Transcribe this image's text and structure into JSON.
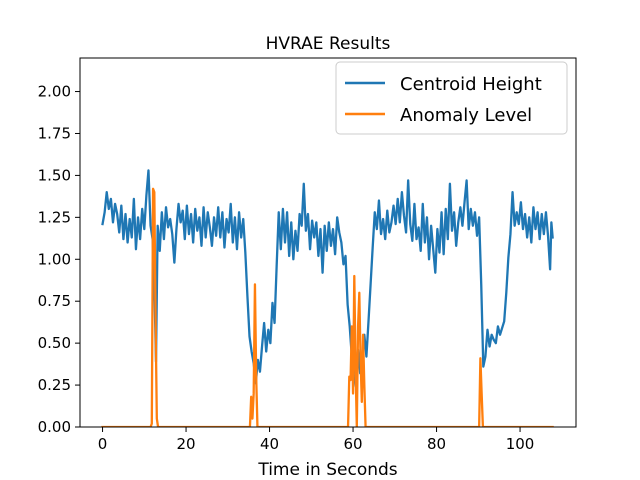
{
  "chart_data": {
    "type": "line",
    "title": "HVRAE Results",
    "xlabel": "Time in Seconds",
    "ylabel": "",
    "xlim": [
      -5.4,
      113.4
    ],
    "ylim": [
      0,
      2.2
    ],
    "xticks": [
      0,
      20,
      40,
      60,
      80,
      100
    ],
    "yticks": [
      0.0,
      0.25,
      0.5,
      0.75,
      1.0,
      1.25,
      1.5,
      1.75,
      2.0
    ],
    "xtick_labels": [
      "0",
      "20",
      "40",
      "60",
      "80",
      "100"
    ],
    "ytick_labels": [
      "0.00",
      "0.25",
      "0.50",
      "0.75",
      "1.00",
      "1.25",
      "1.50",
      "1.75",
      "2.00"
    ],
    "grid": false,
    "legend_position": "top-right",
    "series": [
      {
        "name": "Centroid Height",
        "color": "#1f77b4",
        "points": [
          [
            0,
            1.21
          ],
          [
            0.5,
            1.28
          ],
          [
            1,
            1.4
          ],
          [
            1.5,
            1.3
          ],
          [
            2,
            1.36
          ],
          [
            2.5,
            1.22
          ],
          [
            3,
            1.33
          ],
          [
            3.5,
            1.27
          ],
          [
            4,
            1.16
          ],
          [
            4.5,
            1.32
          ],
          [
            5,
            1.12
          ],
          [
            5.5,
            1.27
          ],
          [
            6,
            1.1
          ],
          [
            6.5,
            1.24
          ],
          [
            7,
            1.13
          ],
          [
            7.5,
            1.36
          ],
          [
            8,
            1.06
          ],
          [
            8.5,
            1.25
          ],
          [
            9,
            1.12
          ],
          [
            9.5,
            1.3
          ],
          [
            10,
            1.18
          ],
          [
            10.5,
            1.38
          ],
          [
            11,
            1.53
          ],
          [
            11.5,
            1.2
          ],
          [
            12,
            1.12
          ],
          [
            12.5,
            0.75
          ],
          [
            12.8,
            0.39
          ],
          [
            13.2,
            1.2
          ],
          [
            13.7,
            1.05
          ],
          [
            14.2,
            1.28
          ],
          [
            14.7,
            1.12
          ],
          [
            15.2,
            1.31
          ],
          [
            15.7,
            1.19
          ],
          [
            16.2,
            1.24
          ],
          [
            16.7,
            1.15
          ],
          [
            17.2,
            0.98
          ],
          [
            17.7,
            1.18
          ],
          [
            18.2,
            1.33
          ],
          [
            18.7,
            1.22
          ],
          [
            19.2,
            1.29
          ],
          [
            19.7,
            1.12
          ],
          [
            20.2,
            1.32
          ],
          [
            20.7,
            1.15
          ],
          [
            21.2,
            1.27
          ],
          [
            21.7,
            1.1
          ],
          [
            22.2,
            1.3
          ],
          [
            22.7,
            1.17
          ],
          [
            23.2,
            1.25
          ],
          [
            23.7,
            1.08
          ],
          [
            24.2,
            1.31
          ],
          [
            24.7,
            1.13
          ],
          [
            25.2,
            1.28
          ],
          [
            25.7,
            1.19
          ],
          [
            26.2,
            1.08
          ],
          [
            26.7,
            1.25
          ],
          [
            27.2,
            1.14
          ],
          [
            27.7,
            1.31
          ],
          [
            28.2,
            1.13
          ],
          [
            28.7,
            1.28
          ],
          [
            29.2,
            1.07
          ],
          [
            29.7,
            1.24
          ],
          [
            30.2,
            1.16
          ],
          [
            30.7,
            1.33
          ],
          [
            31.2,
            1.1
          ],
          [
            31.7,
            1.25
          ],
          [
            32.2,
            1.06
          ],
          [
            32.7,
            1.28
          ],
          [
            33.2,
            1.13
          ],
          [
            33.7,
            1.24
          ],
          [
            34.2,
            1.04
          ],
          [
            34.7,
            0.78
          ],
          [
            35.2,
            0.54
          ],
          [
            35.7,
            0.45
          ],
          [
            36.2,
            0.38
          ],
          [
            36.7,
            0.26
          ],
          [
            37.2,
            0.4
          ],
          [
            37.7,
            0.33
          ],
          [
            38.2,
            0.48
          ],
          [
            38.7,
            0.62
          ],
          [
            39.2,
            0.45
          ],
          [
            39.7,
            0.58
          ],
          [
            40.2,
            0.5
          ],
          [
            40.7,
            0.74
          ],
          [
            41.2,
            0.62
          ],
          [
            41.7,
            0.96
          ],
          [
            42.2,
            1.28
          ],
          [
            42.7,
            1.06
          ],
          [
            43.2,
            1.3
          ],
          [
            43.7,
            1.1
          ],
          [
            44.2,
            1.28
          ],
          [
            44.7,
            1.02
          ],
          [
            45.2,
            1.22
          ],
          [
            45.7,
            1.0
          ],
          [
            46.2,
            1.17
          ],
          [
            46.7,
            1.05
          ],
          [
            47.2,
            1.27
          ],
          [
            47.7,
            1.2
          ],
          [
            48.2,
            1.45
          ],
          [
            48.7,
            1.17
          ],
          [
            49.2,
            1.27
          ],
          [
            49.7,
            1.06
          ],
          [
            50.2,
            1.23
          ],
          [
            50.7,
            1.13
          ],
          [
            51.2,
            1.22
          ],
          [
            51.7,
            1.02
          ],
          [
            52.2,
            1.18
          ],
          [
            52.7,
            0.92
          ],
          [
            53.2,
            1.2
          ],
          [
            53.7,
            1.05
          ],
          [
            54.2,
            1.22
          ],
          [
            54.7,
            1.08
          ],
          [
            55.2,
            1.18
          ],
          [
            55.7,
            1.03
          ],
          [
            56.2,
            1.25
          ],
          [
            56.7,
            1.16
          ],
          [
            57.2,
            1.1
          ],
          [
            57.7,
            0.97
          ],
          [
            58.2,
            1.02
          ],
          [
            58.7,
            0.73
          ],
          [
            59.2,
            0.6
          ],
          [
            59.7,
            0.42
          ],
          [
            60.2,
            0.3
          ],
          [
            60.7,
            0.24
          ],
          [
            61.2,
            0.46
          ],
          [
            61.7,
            0.32
          ],
          [
            62.2,
            0.39
          ],
          [
            62.7,
            0.55
          ],
          [
            63.2,
            0.42
          ],
          [
            63.7,
            0.63
          ],
          [
            64.2,
            0.85
          ],
          [
            64.7,
            1.07
          ],
          [
            65.2,
            1.28
          ],
          [
            65.7,
            1.18
          ],
          [
            66.2,
            1.35
          ],
          [
            66.7,
            1.15
          ],
          [
            67.2,
            1.24
          ],
          [
            67.7,
            1.12
          ],
          [
            68.2,
            1.29
          ],
          [
            68.7,
            1.16
          ],
          [
            69.2,
            1.22
          ],
          [
            69.7,
            1.32
          ],
          [
            70.2,
            1.21
          ],
          [
            70.7,
            1.36
          ],
          [
            71.2,
            1.22
          ],
          [
            71.7,
            1.4
          ],
          [
            72.2,
            1.26
          ],
          [
            72.7,
            1.16
          ],
          [
            73.2,
            1.47
          ],
          [
            73.7,
            1.21
          ],
          [
            74.2,
            1.11
          ],
          [
            74.7,
            1.33
          ],
          [
            75.2,
            1.12
          ],
          [
            75.7,
            1.19
          ],
          [
            76.2,
            1.05
          ],
          [
            76.7,
            1.33
          ],
          [
            77.2,
            1.1
          ],
          [
            77.7,
            1.25
          ],
          [
            78.2,
            1.0
          ],
          [
            78.7,
            1.2
          ],
          [
            79.2,
            1.06
          ],
          [
            79.7,
            0.92
          ],
          [
            80.2,
            1.18
          ],
          [
            80.7,
            1.04
          ],
          [
            81.2,
            1.28
          ],
          [
            81.7,
            1.03
          ],
          [
            82.2,
            1.3
          ],
          [
            82.7,
            1.12
          ],
          [
            83.2,
            1.45
          ],
          [
            83.7,
            1.17
          ],
          [
            84.2,
            1.28
          ],
          [
            84.7,
            1.08
          ],
          [
            85.2,
            1.22
          ],
          [
            85.7,
            1.31
          ],
          [
            86.2,
            1.2
          ],
          [
            86.7,
            1.34
          ],
          [
            87.2,
            1.47
          ],
          [
            87.7,
            1.18
          ],
          [
            88.2,
            1.3
          ],
          [
            88.7,
            1.2
          ],
          [
            89.2,
            1.28
          ],
          [
            89.7,
            1.14
          ],
          [
            90.2,
            1.25
          ],
          [
            90.7,
            0.85
          ],
          [
            91.2,
            0.36
          ],
          [
            91.7,
            0.42
          ],
          [
            92.2,
            0.58
          ],
          [
            92.7,
            0.48
          ],
          [
            93.2,
            0.55
          ],
          [
            93.7,
            0.52
          ],
          [
            94.2,
            0.5
          ],
          [
            94.7,
            0.6
          ],
          [
            95.2,
            0.55
          ],
          [
            95.7,
            0.59
          ],
          [
            96.2,
            0.63
          ],
          [
            96.7,
            0.8
          ],
          [
            97.2,
            1.01
          ],
          [
            97.7,
            1.15
          ],
          [
            98.2,
            1.4
          ],
          [
            98.7,
            1.2
          ],
          [
            99.2,
            1.28
          ],
          [
            99.7,
            1.21
          ],
          [
            100.2,
            1.34
          ],
          [
            100.7,
            1.18
          ],
          [
            101.2,
            1.27
          ],
          [
            101.7,
            1.13
          ],
          [
            102.2,
            1.25
          ],
          [
            102.7,
            1.1
          ],
          [
            103.2,
            1.31
          ],
          [
            103.7,
            1.18
          ],
          [
            104.2,
            1.28
          ],
          [
            104.7,
            1.12
          ],
          [
            105.2,
            1.27
          ],
          [
            105.7,
            1.15
          ],
          [
            106.2,
            1.28
          ],
          [
            106.7,
            1.14
          ],
          [
            107.2,
            0.94
          ],
          [
            107.5,
            1.22
          ],
          [
            107.8,
            1.13
          ]
        ]
      },
      {
        "name": "Anomaly Level",
        "color": "#ff7f0e",
        "points": [
          [
            0,
            0
          ],
          [
            11.5,
            0
          ],
          [
            11.8,
            0.02
          ],
          [
            12.1,
            1.42
          ],
          [
            12.4,
            1.4
          ],
          [
            12.7,
            0.65
          ],
          [
            13.0,
            0.05
          ],
          [
            13.3,
            0
          ],
          [
            35.3,
            0
          ],
          [
            35.6,
            0.18
          ],
          [
            35.9,
            0.05
          ],
          [
            36.2,
            0.2
          ],
          [
            36.5,
            0.85
          ],
          [
            36.8,
            0.3
          ],
          [
            37.1,
            0
          ],
          [
            58.8,
            0
          ],
          [
            59.1,
            0.3
          ],
          [
            59.4,
            0.28
          ],
          [
            59.7,
            0.6
          ],
          [
            60.0,
            0.2
          ],
          [
            60.3,
            0.9
          ],
          [
            60.6,
            0.35
          ],
          [
            60.9,
            0
          ],
          [
            61.2,
            0.6
          ],
          [
            61.5,
            0.8
          ],
          [
            61.8,
            0.4
          ],
          [
            62.1,
            0.15
          ],
          [
            62.4,
            0.55
          ],
          [
            62.7,
            0.25
          ],
          [
            63.0,
            0
          ],
          [
            90.2,
            0
          ],
          [
            90.5,
            0.41
          ],
          [
            90.8,
            0.2
          ],
          [
            91.1,
            0
          ],
          [
            107.8,
            0
          ]
        ]
      }
    ]
  }
}
